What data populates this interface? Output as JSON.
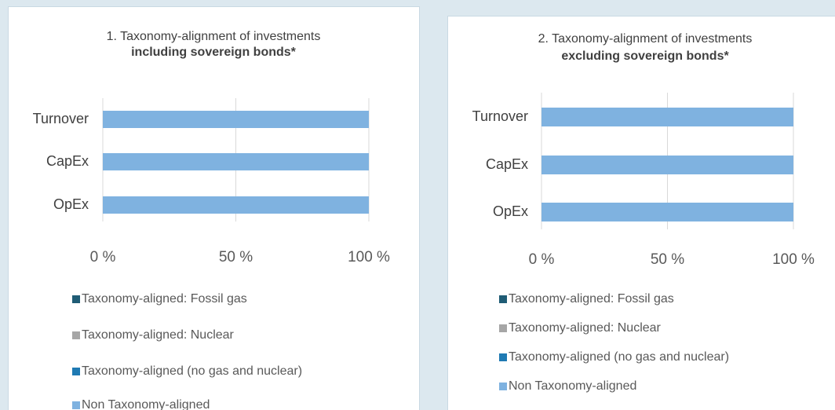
{
  "chart_data": [
    {
      "type": "bar",
      "orientation": "horizontal",
      "stacked": true,
      "title": "1. Taxonomy-alignment of investments",
      "subtitle": "including sovereign bonds*",
      "categories": [
        "Turnover",
        "CapEx",
        "OpEx"
      ],
      "series": [
        {
          "name": "Taxonomy-aligned: Fossil gas",
          "color": "#1f5c75",
          "values": [
            0,
            0,
            0
          ]
        },
        {
          "name": "Taxonomy-aligned: Nuclear",
          "color": "#a6a6a6",
          "values": [
            0,
            0,
            0
          ]
        },
        {
          "name": "Taxonomy-aligned (no gas and nuclear)",
          "color": "#1f7ab3",
          "values": [
            0,
            0,
            0
          ]
        },
        {
          "name": "Non Taxonomy-aligned",
          "color": "#7fb2e0",
          "values": [
            100,
            100,
            100
          ]
        }
      ],
      "xlim": [
        0,
        100
      ],
      "xticks": [
        {
          "value": 0,
          "label": "0 %"
        },
        {
          "value": 50,
          "label": "50 %"
        },
        {
          "value": 100,
          "label": "100 %"
        }
      ],
      "grid": true,
      "legend": "bottom"
    },
    {
      "type": "bar",
      "orientation": "horizontal",
      "stacked": true,
      "title": "2. Taxonomy-alignment of investments",
      "subtitle": "excluding sovereign bonds*",
      "categories": [
        "Turnover",
        "CapEx",
        "OpEx"
      ],
      "series": [
        {
          "name": "Taxonomy-aligned: Fossil gas",
          "color": "#1f5c75",
          "values": [
            0,
            0,
            0
          ]
        },
        {
          "name": "Taxonomy-aligned: Nuclear",
          "color": "#a6a6a6",
          "values": [
            0,
            0,
            0
          ]
        },
        {
          "name": "Taxonomy-aligned (no gas and nuclear)",
          "color": "#1f7ab3",
          "values": [
            0,
            0,
            0
          ]
        },
        {
          "name": "Non Taxonomy-aligned",
          "color": "#7fb2e0",
          "values": [
            100,
            100,
            100
          ]
        }
      ],
      "xlim": [
        0,
        100
      ],
      "xticks": [
        {
          "value": 0,
          "label": "0 %"
        },
        {
          "value": 50,
          "label": "50 %"
        },
        {
          "value": 100,
          "label": "100 %"
        }
      ],
      "grid": true,
      "legend": "bottom"
    }
  ]
}
